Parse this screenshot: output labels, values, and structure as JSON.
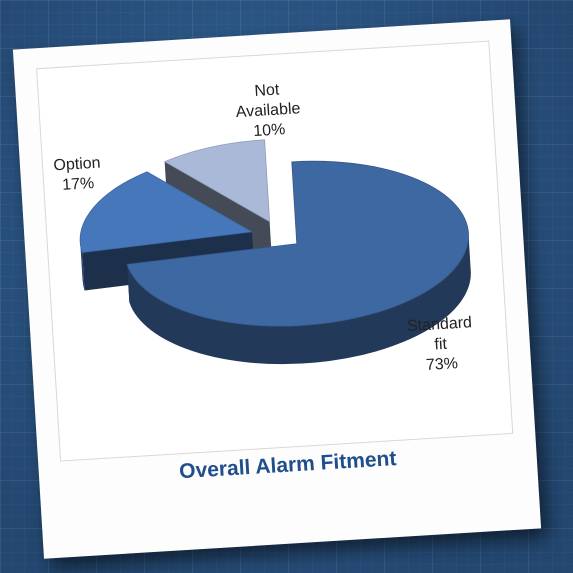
{
  "caption": "Overall Alarm Fitment",
  "chart_data": {
    "type": "pie",
    "title": "",
    "slices": [
      {
        "label": [
          "Standard",
          "fit"
        ],
        "value": 73,
        "value_label": "73%",
        "color": "#3e68a1"
      },
      {
        "label": [
          "Option"
        ],
        "value": 17,
        "value_label": "17%",
        "color": "#4677bb"
      },
      {
        "label": [
          "Not",
          "Available"
        ],
        "value": 10,
        "value_label": "10%",
        "color": "#a9b9d7"
      }
    ]
  }
}
